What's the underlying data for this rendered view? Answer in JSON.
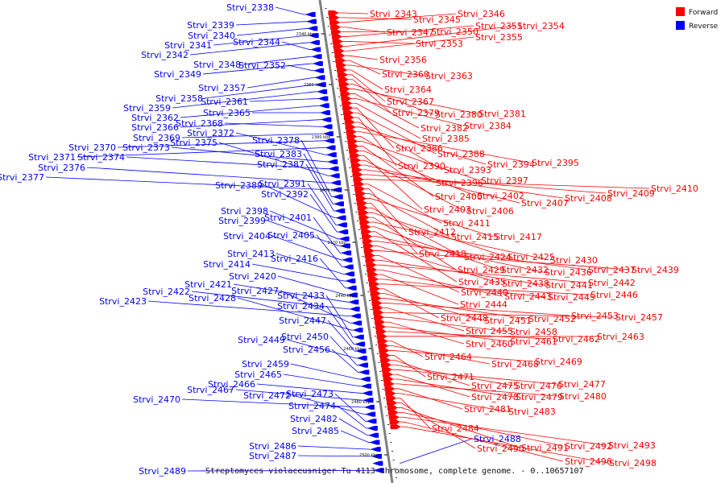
{
  "caption": "Streptomyces violaceusniger Tu 4113 chromosome, complete genome. - 0..10657107",
  "legend": [
    {
      "label": "Forward",
      "color": "#ff0000"
    },
    {
      "label": "Reverse",
      "color": "#0000ff"
    }
  ],
  "colors": {
    "forward": "#ff0000",
    "reverse": "#0000ff",
    "backbone": "#7f7f7f"
  },
  "ticks": [
    "2340 kbp",
    "2360 kbp",
    "2380 kbp",
    "2400 kbp",
    "2420 kbp",
    "2440 kbp",
    "2460 kbp",
    "2480 kbp",
    "2500 kbp"
  ],
  "reverse_genes": [
    "Strvi_2338",
    "Strvi_2339",
    "Strvi_2340",
    "Strvi_2341",
    "Strvi_2342",
    "Strvi_2344",
    "Strvi_2348",
    "Strvi_2349",
    "Strvi_2352",
    "Strvi_2357",
    "Strvi_2358",
    "Strvi_2359",
    "Strvi_2361",
    "Strvi_2362",
    "Strvi_2365",
    "Strvi_2366",
    "Strvi_2368",
    "Strvi_2369",
    "Strvi_2370",
    "Strvi_2371",
    "Strvi_2372",
    "Strvi_2373",
    "Strvi_2374",
    "Strvi_2375",
    "Strvi_2376",
    "Strvi_2377",
    "Strvi_2378",
    "Strvi_2383",
    "Strvi_2387",
    "Strvi_2389",
    "Strvi_2391",
    "Strvi_2392",
    "Strvi_2398",
    "Strvi_2399",
    "Strvi_2401",
    "Strvi_2404",
    "Strvi_2405",
    "Strvi_2413",
    "Strvi_2414",
    "Strvi_2416",
    "Strvi_2420",
    "Strvi_2421",
    "Strvi_2422",
    "Strvi_2423",
    "Strvi_2427",
    "Strvi_2428",
    "Strvi_2433",
    "Strvi_2434",
    "Strvi_2447",
    "Strvi_2449",
    "Strvi_2450",
    "Strvi_2456",
    "Strvi_2459",
    "Strvi_2465",
    "Strvi_2466",
    "Strvi_2467",
    "Strvi_2470",
    "Strvi_2472",
    "Strvi_2473",
    "Strvi_2474",
    "Strvi_2482",
    "Strvi_2485",
    "Strvi_2486",
    "Strvi_2487",
    "Strvi_2488",
    "Strvi_2489"
  ],
  "forward_genes": [
    "Strvi_2343",
    "Strvi_2345",
    "Strvi_2346",
    "Strvi_2347",
    "Strvi_2350",
    "Strvi_2351",
    "Strvi_2353",
    "Strvi_2354",
    "Strvi_2355",
    "Strvi_2356",
    "Strvi_2360",
    "Strvi_2363",
    "Strvi_2364",
    "Strvi_2367",
    "Strvi_2379",
    "Strvi_2380",
    "Strvi_2381",
    "Strvi_2382",
    "Strvi_2384",
    "Strvi_2385",
    "Strvi_2386",
    "Strvi_2388",
    "Strvi_2390",
    "Strvi_2393",
    "Strvi_2394",
    "Strvi_2395",
    "Strvi_2396",
    "Strvi_2397",
    "Strvi_2400",
    "Strvi_2402",
    "Strvi_2403",
    "Strvi_2406",
    "Strvi_2407",
    "Strvi_2408",
    "Strvi_2409",
    "Strvi_2410",
    "Strvi_2411",
    "Strvi_2412",
    "Strvi_2415",
    "Strvi_2417",
    "Strvi_2418",
    "Strvi_2424",
    "Strvi_2425",
    "Strvi_2429",
    "Strvi_2430",
    "Strvi_2432",
    "Strvi_2435",
    "Strvi_2436",
    "Strvi_2437",
    "Strvi_2438",
    "Strvi_2439",
    "Strvi_2440",
    "Strvi_2441",
    "Strvi_2442",
    "Strvi_2443",
    "Strvi_2444",
    "Strvi_2445",
    "Strvi_2446",
    "Strvi_2448",
    "Strvi_2451",
    "Strvi_2452",
    "Strvi_2453",
    "Strvi_2455",
    "Strvi_2457",
    "Strvi_2458",
    "Strvi_2460",
    "Strvi_2461",
    "Strvi_2462",
    "Strvi_2463",
    "Strvi_2464",
    "Strvi_2468",
    "Strvi_2469",
    "Strvi_2471",
    "Strvi_2475",
    "Strvi_2476",
    "Strvi_2477",
    "Strvi_2478",
    "Strvi_2479",
    "Strvi_2480",
    "Strvi_2481",
    "Strvi_2483",
    "Strvi_2484",
    "Strvi_2490",
    "Strvi_2491",
    "Strvi_2492",
    "Strvi_2493",
    "Strvi_2496",
    "Strvi_2498"
  ]
}
